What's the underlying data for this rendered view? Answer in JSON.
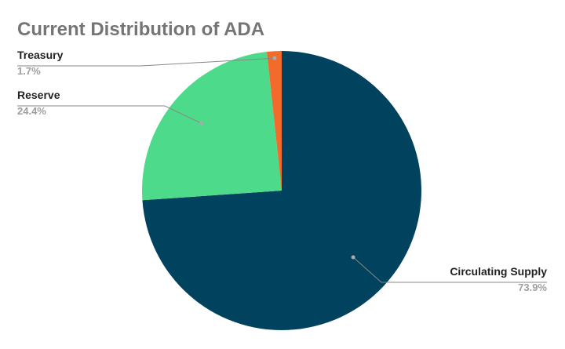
{
  "chart_data": {
    "type": "pie",
    "title": "Current Distribution of ADA",
    "categories": [
      "Circulating Supply",
      "Reserve",
      "Treasury"
    ],
    "values": [
      73.9,
      24.4,
      1.7
    ],
    "value_labels": [
      "73.9%",
      "24.4%",
      "1.7%"
    ],
    "colors": [
      "#01425e",
      "#4ddb8b",
      "#f26b2a"
    ]
  }
}
